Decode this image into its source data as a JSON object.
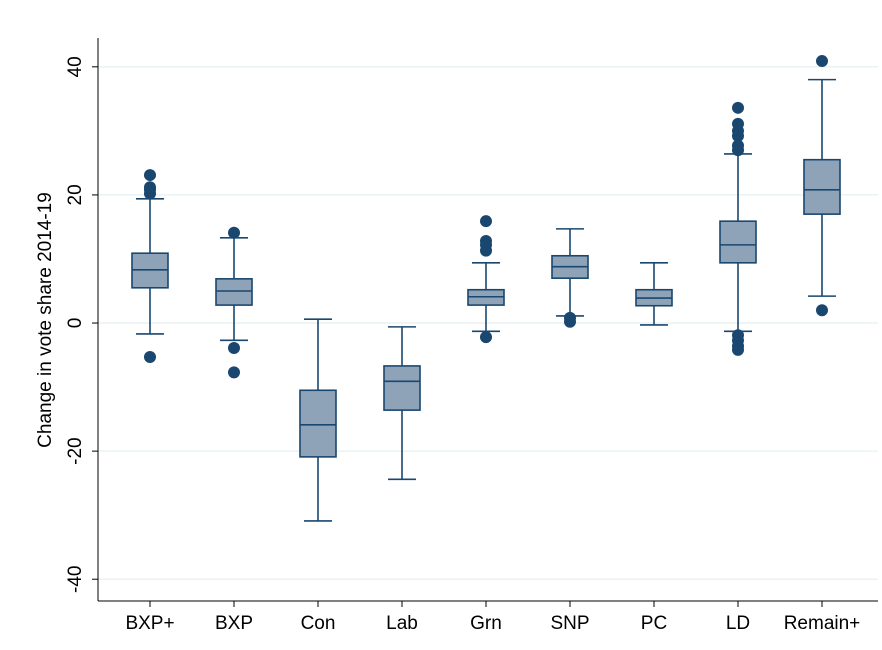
{
  "chart_data": {
    "type": "box",
    "y_label": "Change in vote share 2014-19",
    "categories": [
      "BXP+",
      "BXP",
      "Con",
      "Lab",
      "Grn",
      "SNP",
      "PC",
      "LD",
      "Remain+"
    ],
    "boxes": [
      {
        "whisker_low": -1.7,
        "q1": 5.5,
        "median": 8.3,
        "q3": 10.9,
        "whisker_high": 19.4,
        "outliers": [
          23.1,
          21.2,
          20.8,
          20.2,
          -5.3
        ]
      },
      {
        "whisker_low": -2.7,
        "q1": 2.8,
        "median": 5.0,
        "q3": 6.9,
        "whisker_high": 13.3,
        "outliers": [
          14.1,
          -3.9,
          -7.7
        ]
      },
      {
        "whisker_low": -30.9,
        "q1": -20.9,
        "median": -15.9,
        "q3": -10.5,
        "whisker_high": 0.6,
        "outliers": []
      },
      {
        "whisker_low": -24.4,
        "q1": -13.6,
        "median": -9.1,
        "q3": -6.7,
        "whisker_high": -0.6,
        "outliers": []
      },
      {
        "whisker_low": -1.3,
        "q1": 2.8,
        "median": 4.1,
        "q3": 5.2,
        "whisker_high": 9.4,
        "outliers": [
          15.9,
          12.8,
          12.2,
          11.3,
          -2.2
        ]
      },
      {
        "whisker_low": 1.1,
        "q1": 7.0,
        "median": 8.8,
        "q3": 10.5,
        "whisker_high": 14.7,
        "outliers": [
          0.8,
          0.2
        ]
      },
      {
        "whisker_low": -0.3,
        "q1": 2.7,
        "median": 3.9,
        "q3": 5.2,
        "whisker_high": 9.4,
        "outliers": []
      },
      {
        "whisker_low": -1.3,
        "q1": 9.4,
        "median": 12.2,
        "q3": 15.9,
        "whisker_high": 26.4,
        "outliers": [
          33.6,
          31.1,
          30.0,
          29.2,
          27.7,
          27.0,
          -1.9,
          -2.7,
          -3.6,
          -4.2
        ]
      },
      {
        "whisker_low": 4.2,
        "q1": 17.0,
        "median": 20.8,
        "q3": 25.5,
        "whisker_high": 38.0,
        "outliers": [
          40.9,
          2.0
        ]
      }
    ],
    "color": "#8fa3b8",
    "line_color": "#1a476f",
    "ylim": [
      -43.4,
      44.5
    ],
    "yticks": [
      -40,
      -20,
      0,
      20,
      40
    ],
    "grid": true
  }
}
